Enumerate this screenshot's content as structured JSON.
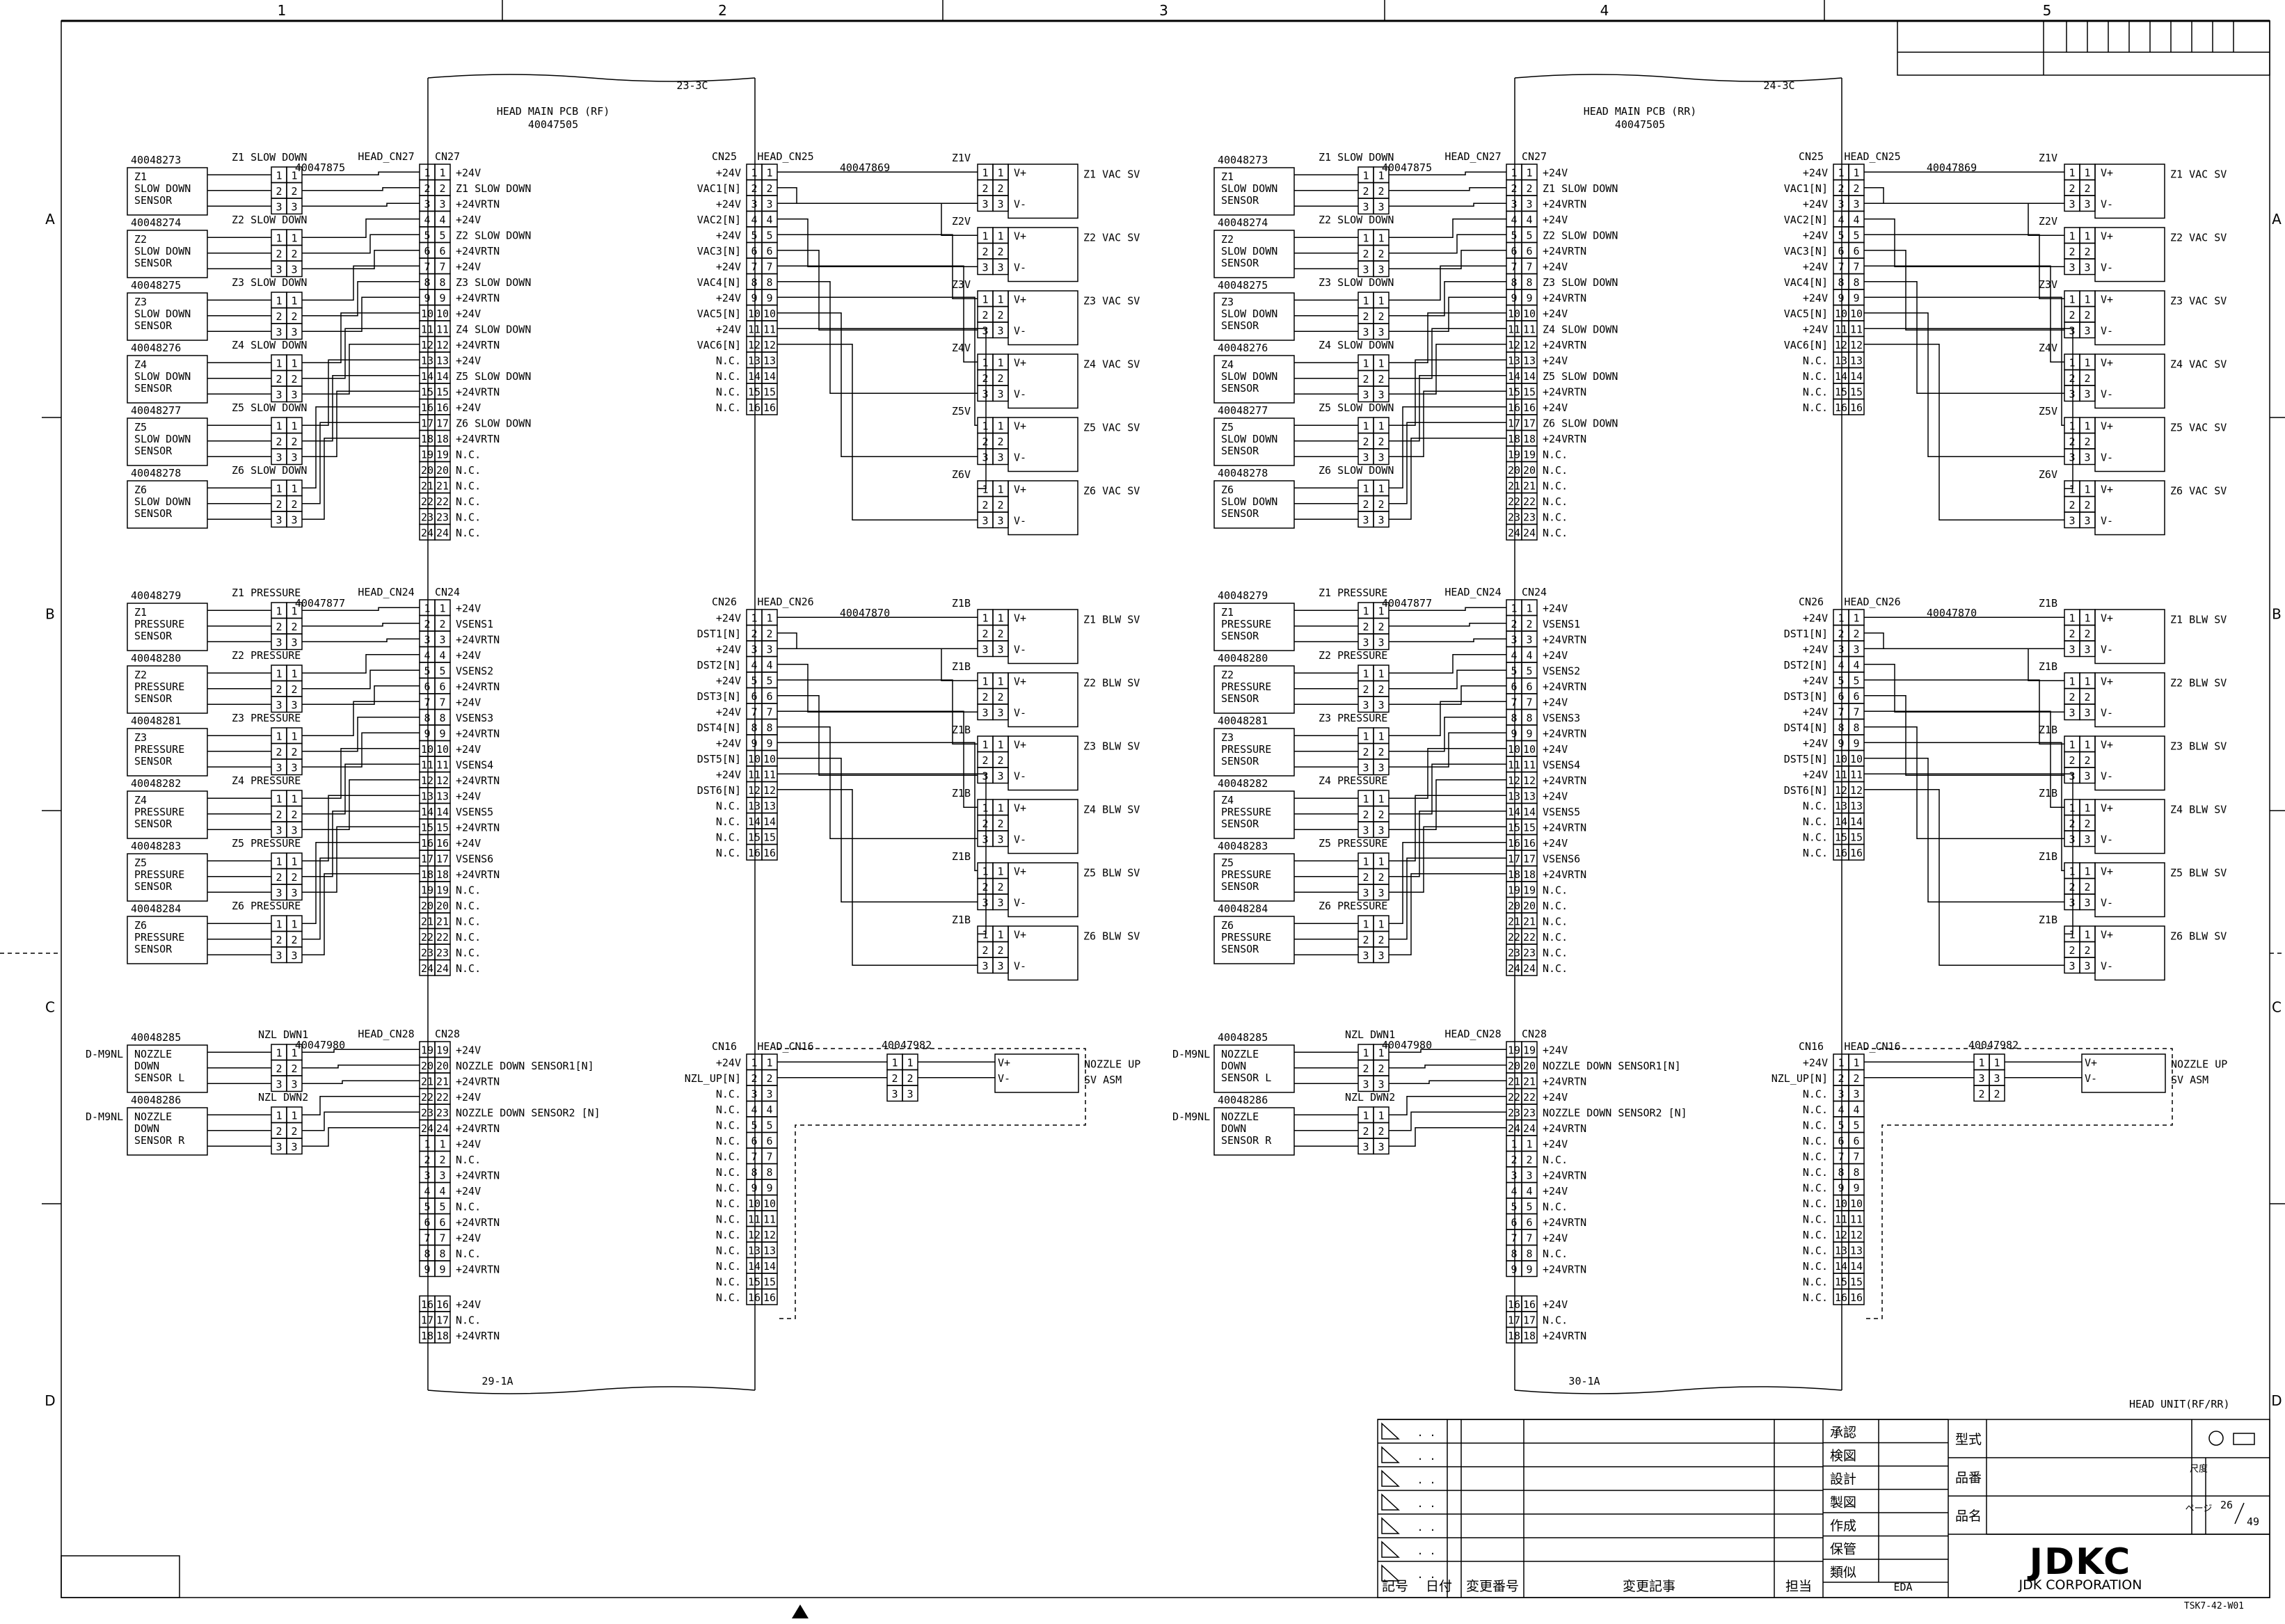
{
  "sheet": {
    "columns": [
      "1",
      "2",
      "3",
      "4",
      "5"
    ],
    "rows": [
      "A",
      "B",
      "C",
      "D"
    ],
    "title": "HEAD UNIT(RF/RR)",
    "page": "26",
    "total_pages": "49",
    "form_code": "TSK7-42-W01",
    "company_logo": "JDKC",
    "company_name": "JDK CORPORATION",
    "eda": "EDA"
  },
  "title_block": {
    "approvals": [
      "承認",
      "検図",
      "設計",
      "製図",
      "作成",
      "保管",
      "類似"
    ],
    "fields": [
      "型式",
      "品番",
      "品名"
    ],
    "scale_label": "尺度",
    "page_label": "ページ",
    "revision_headers": [
      "記号",
      "日付",
      "変更番号",
      "変更記事",
      "担当"
    ],
    "revision_row_marks": ". ."
  },
  "halves": [
    {
      "pcb_title": "HEAD MAIN PCB (RF)",
      "pcb_part": "40047505",
      "top_ref": "23-3C",
      "bottom_ref": "29-1A",
      "slow_down_harness": "40047875",
      "pressure_harness": "40047877",
      "nozzle_harness": "40047980",
      "vac_harness": "40047869",
      "blow_harness": "40047870",
      "nzl_up_harness": "40047982"
    },
    {
      "pcb_title": "HEAD MAIN PCB (RR)",
      "pcb_part": "40047505",
      "top_ref": "24-3C",
      "bottom_ref": "30-1A",
      "slow_down_harness": "40047875",
      "pressure_harness": "40047877",
      "nozzle_harness": "40047980",
      "vac_harness": "40047869",
      "blow_harness": "40047870",
      "nzl_up_harness": "40047982"
    }
  ],
  "cn27": {
    "name": "CN27",
    "head": "HEAD_CN27",
    "signals": [
      "+24V",
      "Z1 SLOW DOWN",
      "+24VRTN",
      "+24V",
      "Z2 SLOW DOWN",
      "+24VRTN",
      "+24V",
      "Z3 SLOW DOWN",
      "+24VRTN",
      "+24V",
      "Z4 SLOW DOWN",
      "+24VRTN",
      "+24V",
      "Z5 SLOW DOWN",
      "+24VRTN",
      "+24V",
      "Z6 SLOW DOWN",
      "+24VRTN",
      "N.C.",
      "N.C.",
      "N.C.",
      "N.C.",
      "N.C.",
      "N.C."
    ]
  },
  "cn24": {
    "name": "CN24",
    "head": "HEAD_CN24",
    "signals": [
      "+24V",
      "VSENS1",
      "+24VRTN",
      "+24V",
      "VSENS2",
      "+24VRTN",
      "+24V",
      "VSENS3",
      "+24VRTN",
      "+24V",
      "VSENS4",
      "+24VRTN",
      "+24V",
      "VSENS5",
      "+24VRTN",
      "+24V",
      "VSENS6",
      "+24VRTN",
      "N.C.",
      "N.C.",
      "N.C.",
      "N.C.",
      "N.C.",
      "N.C."
    ]
  },
  "cn28": {
    "name": "CN28",
    "head": "HEAD_CN28",
    "pins_a": [
      "19",
      "20",
      "21",
      "22",
      "23",
      "24"
    ],
    "signals_a": [
      "+24V",
      "NOZZLE DOWN SENSOR1[N]",
      "+24VRTN",
      "+24V",
      "NOZZLE DOWN SENSOR2 [N]",
      "+24VRTN"
    ],
    "pins_b": [
      "1",
      "2",
      "3",
      "4",
      "5",
      "6",
      "7",
      "8",
      "9"
    ],
    "signals_b": [
      "+24V",
      "N.C.",
      "+24VRTN",
      "+24V",
      "N.C.",
      "+24VRTN",
      "+24V",
      "N.C.",
      "+24VRTN"
    ],
    "pins_c": [
      "16",
      "17",
      "18"
    ],
    "signals_c": [
      "+24V",
      "N.C.",
      "+24VRTN"
    ]
  },
  "cn25": {
    "name": "CN25",
    "head": "HEAD_CN25",
    "signals": [
      "+24V",
      "VAC1[N]",
      "+24V",
      "VAC2[N]",
      "+24V",
      "VAC3[N]",
      "+24V",
      "VAC4[N]",
      "+24V",
      "VAC5[N]",
      "+24V",
      "VAC6[N]",
      "N.C.",
      "N.C.",
      "N.C.",
      "N.C."
    ]
  },
  "cn26": {
    "name": "CN26",
    "head": "HEAD_CN26",
    "signals": [
      "+24V",
      "DST1[N]",
      "+24V",
      "DST2[N]",
      "+24V",
      "DST3[N]",
      "+24V",
      "DST4[N]",
      "+24V",
      "DST5[N]",
      "+24V",
      "DST6[N]",
      "N.C.",
      "N.C.",
      "N.C.",
      "N.C."
    ]
  },
  "cn16": {
    "name": "CN16",
    "head": "HEAD_CN16",
    "signals": [
      "+24V",
      "NZL_UP[N]",
      "N.C.",
      "N.C.",
      "N.C.",
      "N.C.",
      "N.C.",
      "N.C.",
      "N.C.",
      "N.C.",
      "N.C.",
      "N.C.",
      "N.C.",
      "N.C.",
      "N.C.",
      "N.C."
    ]
  },
  "slow_down_sensors": [
    {
      "part": "40048273",
      "conn": "Z1 SLOW DOWN",
      "label": [
        "Z1",
        "SLOW DOWN",
        "SENSOR"
      ]
    },
    {
      "part": "40048274",
      "conn": "Z2 SLOW DOWN",
      "label": [
        "Z2",
        "SLOW DOWN",
        "SENSOR"
      ]
    },
    {
      "part": "40048275",
      "conn": "Z3 SLOW DOWN",
      "label": [
        "Z3",
        "SLOW DOWN",
        "SENSOR"
      ]
    },
    {
      "part": "40048276",
      "conn": "Z4 SLOW DOWN",
      "label": [
        "Z4",
        "SLOW DOWN",
        "SENSOR"
      ]
    },
    {
      "part": "40048277",
      "conn": "Z5 SLOW DOWN",
      "label": [
        "Z5",
        "SLOW DOWN",
        "SENSOR"
      ]
    },
    {
      "part": "40048278",
      "conn": "Z6 SLOW DOWN",
      "label": [
        "Z6",
        "SLOW DOWN",
        "SENSOR"
      ]
    }
  ],
  "pressure_sensors": [
    {
      "part": "40048279",
      "conn": "Z1 PRESSURE",
      "label": [
        "Z1",
        "PRESSURE",
        "SENSOR"
      ]
    },
    {
      "part": "40048280",
      "conn": "Z2 PRESSURE",
      "label": [
        "Z2",
        "PRESSURE",
        "SENSOR"
      ]
    },
    {
      "part": "40048281",
      "conn": "Z3 PRESSURE",
      "label": [
        "Z3",
        "PRESSURE",
        "SENSOR"
      ]
    },
    {
      "part": "40048282",
      "conn": "Z4 PRESSURE",
      "label": [
        "Z4",
        "PRESSURE",
        "SENSOR"
      ]
    },
    {
      "part": "40048283",
      "conn": "Z5 PRESSURE",
      "label": [
        "Z5",
        "PRESSURE",
        "SENSOR"
      ]
    },
    {
      "part": "40048284",
      "conn": "Z6 PRESSURE",
      "label": [
        "Z6",
        "PRESSURE",
        "SENSOR"
      ]
    }
  ],
  "nozzle_sensors": [
    {
      "part": "40048285",
      "conn": "NZL DWN1",
      "type": "D-M9NL",
      "label": [
        "NOZZLE",
        "DOWN",
        "SENSOR L"
      ]
    },
    {
      "part": "40048286",
      "conn": "NZL DWN2",
      "type": "D-M9NL",
      "label": [
        "NOZZLE",
        "DOWN",
        "SENSOR R"
      ]
    }
  ],
  "vac_valves": [
    {
      "conn": "Z1V",
      "label": "Z1 VAC SV"
    },
    {
      "conn": "Z2V",
      "label": "Z2 VAC SV"
    },
    {
      "conn": "Z3V",
      "label": "Z3 VAC SV"
    },
    {
      "conn": "Z4V",
      "label": "Z4 VAC SV"
    },
    {
      "conn": "Z5V",
      "label": "Z5 VAC SV"
    },
    {
      "conn": "Z6V",
      "label": "Z6 VAC SV"
    }
  ],
  "blow_valves": [
    {
      "conn": "Z1B",
      "label": "Z1 BLW SV"
    },
    {
      "conn": "Z1B",
      "label": "Z2 BLW SV"
    },
    {
      "conn": "Z1B",
      "label": "Z3 BLW SV"
    },
    {
      "conn": "Z1B",
      "label": "Z4 BLW SV"
    },
    {
      "conn": "Z1B",
      "label": "Z5 BLW SV"
    },
    {
      "conn": "Z1B",
      "label": "Z6 BLW SV"
    }
  ],
  "valve_pins": [
    "V+",
    "",
    "V-"
  ],
  "nozzle_up_valve": {
    "label": [
      "NOZZLE UP",
      "SV ASM"
    ],
    "pins": [
      "V+",
      "V-"
    ]
  }
}
